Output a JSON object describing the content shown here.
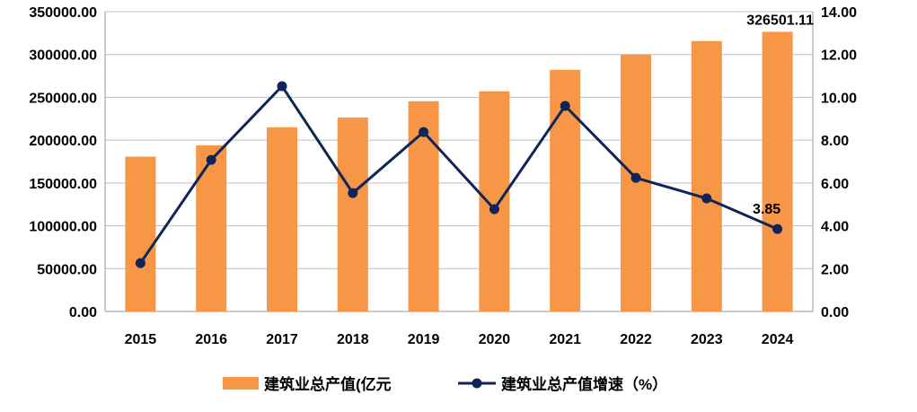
{
  "chart_data": {
    "type": "bar+line",
    "categories": [
      "2015",
      "2016",
      "2017",
      "2018",
      "2019",
      "2020",
      "2021",
      "2022",
      "2023",
      "2024"
    ],
    "series": [
      {
        "name": "建筑业总产值(亿元",
        "type": "bar",
        "axis": "left",
        "color": "#F79646",
        "values": [
          180757,
          194000,
          215000,
          226500,
          245400,
          257000,
          282100,
          300000,
          315700,
          326501.11
        ]
      },
      {
        "name": "建筑业总产值增速（%）",
        "type": "line",
        "axis": "right",
        "color": "#0F2557",
        "values": [
          2.26,
          7.08,
          10.52,
          5.53,
          8.38,
          4.78,
          9.6,
          6.24,
          5.28,
          3.85
        ]
      }
    ],
    "data_labels": {
      "bar_2024": "326501.11",
      "line_2024": "3.85"
    },
    "y_left": {
      "range": [
        0,
        350000
      ],
      "ticks": [
        "0.00",
        "50000.00",
        "100000.00",
        "150000.00",
        "200000.00",
        "250000.00",
        "300000.00",
        "350000.00"
      ]
    },
    "y_right": {
      "range": [
        0,
        14
      ],
      "ticks": [
        "0.00",
        "2.00",
        "4.00",
        "6.00",
        "8.00",
        "10.00",
        "12.00",
        "14.00"
      ]
    },
    "grid": true,
    "legend": "bottom"
  }
}
